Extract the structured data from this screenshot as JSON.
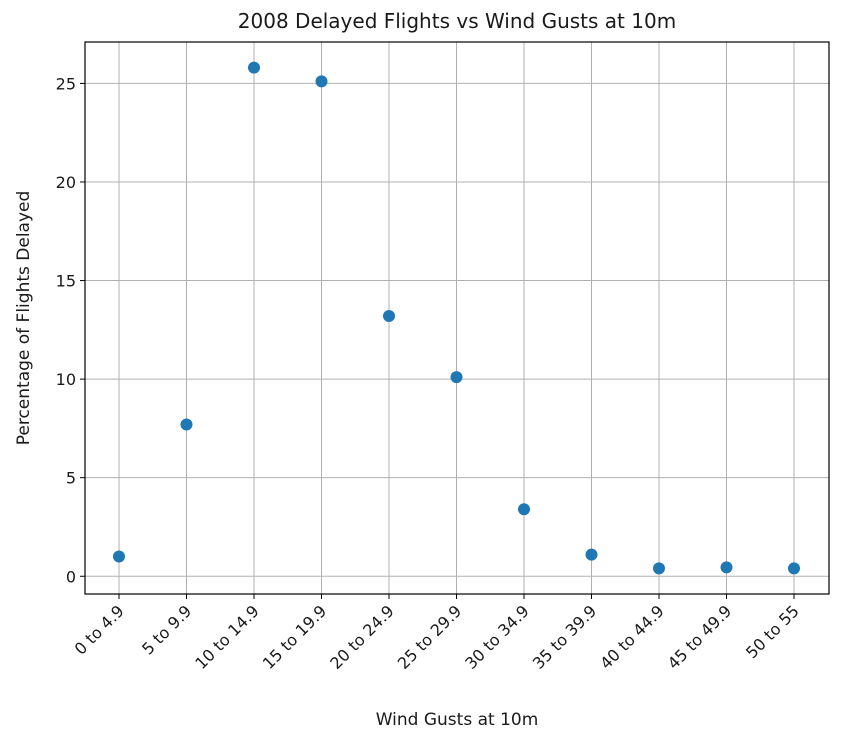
{
  "chart_data": {
    "type": "scatter",
    "title": "2008 Delayed Flights vs Wind Gusts at 10m",
    "xlabel": "Wind Gusts at 10m",
    "ylabel": "Percentage of Flights Delayed",
    "categories": [
      "0 to 4.9",
      "5 to 9.9",
      "10 to 14.9",
      "15 to 19.9",
      "20 to 24.9",
      "25 to 29.9",
      "30 to 34.9",
      "35 to 39.9",
      "40 to 44.9",
      "45 to 49.9",
      "50 to 55"
    ],
    "values": [
      1.0,
      7.7,
      25.8,
      25.1,
      13.2,
      10.1,
      3.4,
      1.1,
      0.4,
      0.45,
      0.4
    ],
    "ylim": [
      -0.9,
      27.1
    ],
    "yticks": [
      0,
      5,
      10,
      15,
      20,
      25
    ],
    "ytick_labels": [
      "0",
      "5",
      "10",
      "15",
      "20",
      "25"
    ],
    "grid": true,
    "marker_color": "#1f77b4"
  }
}
